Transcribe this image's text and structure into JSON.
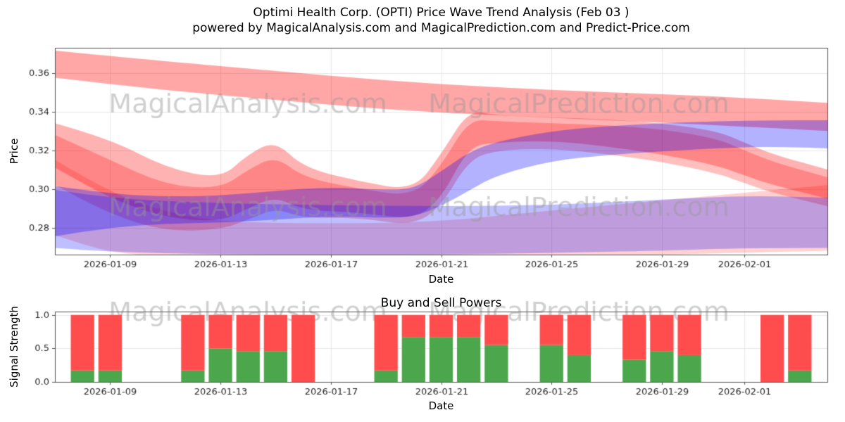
{
  "title": {
    "line1": "Optimi Health Corp. (OPTI) Price Wave Trend Analysis (Feb 03 )",
    "line2": "powered by MagicalAnalysis.com and MagicalPrediction.com and Predict-Price.com"
  },
  "watermarks": {
    "left": "MagicalAnalysis.com",
    "right": "MagicalPrediction.com",
    "color": "rgba(150,150,150,0.45)"
  },
  "chart_data": [
    {
      "type": "area",
      "name": "price-wave-trend",
      "xlabel": "Date",
      "ylabel": "Price",
      "x_domain": [
        0,
        28
      ],
      "x_ticks": [
        {
          "day": 2,
          "label": "2026-01-09"
        },
        {
          "day": 6,
          "label": "2026-01-13"
        },
        {
          "day": 10,
          "label": "2026-01-17"
        },
        {
          "day": 14,
          "label": "2026-01-21"
        },
        {
          "day": 18,
          "label": "2026-01-25"
        },
        {
          "day": 22,
          "label": "2026-01-29"
        },
        {
          "day": 25,
          "label": "2026-02-01"
        }
      ],
      "ylim": [
        0.266,
        0.373
      ],
      "y_ticks": [
        {
          "v": 0.28,
          "label": "0.28"
        },
        {
          "v": 0.3,
          "label": "0.30"
        },
        {
          "v": 0.32,
          "label": "0.32"
        },
        {
          "v": 0.34,
          "label": "0.34"
        },
        {
          "v": 0.36,
          "label": "0.36"
        }
      ],
      "bands": [
        {
          "name": "upper-trend-band",
          "color": "rgba(255,0,0,0.35)",
          "points": [
            [
              0,
              0.3575,
              0.3715
            ],
            [
              4,
              0.351,
              0.366
            ],
            [
              8,
              0.346,
              0.361
            ],
            [
              12,
              0.341,
              0.356
            ],
            [
              16,
              0.338,
              0.3525
            ],
            [
              20,
              0.3355,
              0.35
            ],
            [
              24,
              0.333,
              0.348
            ],
            [
              28,
              0.33,
              0.3445
            ]
          ]
        },
        {
          "name": "mid-trend-band-a",
          "color": "rgba(255,0,0,0.30)",
          "points": [
            [
              0,
              0.311,
              0.334
            ],
            [
              2,
              0.295,
              0.326
            ],
            [
              4,
              0.285,
              0.311
            ],
            [
              6,
              0.283,
              0.305
            ],
            [
              7,
              0.29,
              0.318
            ],
            [
              8,
              0.296,
              0.325
            ],
            [
              9,
              0.289,
              0.311
            ],
            [
              11,
              0.288,
              0.304
            ],
            [
              13,
              0.284,
              0.299
            ],
            [
              14,
              0.295,
              0.318
            ],
            [
              15,
              0.322,
              0.341
            ],
            [
              16,
              0.324,
              0.338
            ],
            [
              18,
              0.325,
              0.337
            ],
            [
              20,
              0.322,
              0.336
            ],
            [
              22,
              0.318,
              0.334
            ],
            [
              24,
              0.312,
              0.33
            ],
            [
              25,
              0.307,
              0.324
            ],
            [
              26,
              0.302,
              0.318
            ],
            [
              28,
              0.295,
              0.31
            ]
          ]
        },
        {
          "name": "mid-trend-band-b",
          "color": "rgba(255,0,0,0.25)",
          "points": [
            [
              0,
              0.302,
              0.328
            ],
            [
              2,
              0.287,
              0.315
            ],
            [
              4,
              0.278,
              0.302
            ],
            [
              6,
              0.279,
              0.3
            ],
            [
              7,
              0.284,
              0.31
            ],
            [
              8,
              0.29,
              0.317
            ],
            [
              9,
              0.285,
              0.306
            ],
            [
              11,
              0.285,
              0.3
            ],
            [
              13,
              0.281,
              0.296
            ],
            [
              14,
              0.291,
              0.312
            ],
            [
              15,
              0.315,
              0.336
            ],
            [
              16,
              0.32,
              0.335
            ],
            [
              18,
              0.321,
              0.334
            ],
            [
              20,
              0.318,
              0.333
            ],
            [
              22,
              0.314,
              0.331
            ],
            [
              24,
              0.308,
              0.326
            ],
            [
              25,
              0.303,
              0.32
            ],
            [
              26,
              0.298,
              0.314
            ],
            [
              28,
              0.291,
              0.306
            ]
          ]
        },
        {
          "name": "lower-red-band",
          "color": "rgba(255,0,0,0.18)",
          "points": [
            [
              0,
              0.276,
              0.315
            ],
            [
              2,
              0.267,
              0.298
            ],
            [
              4,
              0.265,
              0.288
            ],
            [
              6,
              0.264,
              0.283
            ],
            [
              10,
              0.264,
              0.282
            ],
            [
              14,
              0.264,
              0.283
            ],
            [
              18,
              0.265,
              0.289
            ],
            [
              22,
              0.266,
              0.294
            ],
            [
              25,
              0.267,
              0.298
            ],
            [
              28,
              0.268,
              0.302
            ]
          ]
        },
        {
          "name": "blue-trend-band",
          "color": "rgba(0,0,255,0.30)",
          "points": [
            [
              0,
              0.2755,
              0.3015
            ],
            [
              2,
              0.28,
              0.2975
            ],
            [
              4,
              0.282,
              0.296
            ],
            [
              6,
              0.2825,
              0.2965
            ],
            [
              8,
              0.284,
              0.299
            ],
            [
              10,
              0.286,
              0.301
            ],
            [
              12,
              0.285,
              0.2995
            ],
            [
              13,
              0.2855,
              0.3
            ],
            [
              14,
              0.291,
              0.309
            ],
            [
              15,
              0.299,
              0.319
            ],
            [
              16,
              0.307,
              0.3245
            ],
            [
              18,
              0.3145,
              0.33
            ],
            [
              20,
              0.3175,
              0.3325
            ],
            [
              22,
              0.3195,
              0.334
            ],
            [
              24,
              0.321,
              0.335
            ],
            [
              26,
              0.322,
              0.3355
            ],
            [
              28,
              0.321,
              0.3355
            ]
          ]
        },
        {
          "name": "blue-base-band",
          "color": "rgba(0,0,255,0.25)",
          "points": [
            [
              0,
              0.2695,
              0.2995
            ],
            [
              2,
              0.2675,
              0.295
            ],
            [
              6,
              0.266,
              0.2925
            ],
            [
              10,
              0.266,
              0.2915
            ],
            [
              14,
              0.266,
              0.291
            ],
            [
              18,
              0.267,
              0.2915
            ],
            [
              22,
              0.268,
              0.2945
            ],
            [
              25,
              0.2695,
              0.2965
            ],
            [
              28,
              0.2695,
              0.2955
            ]
          ]
        }
      ]
    },
    {
      "type": "bar",
      "name": "buy-sell-powers",
      "title": "Buy and Sell Powers",
      "xlabel": "Date",
      "ylabel": "Signal Strength",
      "x_domain": [
        0,
        28
      ],
      "x_ticks": [
        {
          "day": 2,
          "label": "2026-01-09"
        },
        {
          "day": 6,
          "label": "2026-01-13"
        },
        {
          "day": 10,
          "label": "2026-01-17"
        },
        {
          "day": 14,
          "label": "2026-01-21"
        },
        {
          "day": 18,
          "label": "2026-01-25"
        },
        {
          "day": 22,
          "label": "2026-01-29"
        },
        {
          "day": 25,
          "label": "2026-02-01"
        }
      ],
      "ylim": [
        0,
        1.05
      ],
      "y_ticks": [
        {
          "v": 0.0,
          "label": "0.0"
        },
        {
          "v": 0.5,
          "label": "0.5"
        },
        {
          "v": 1.0,
          "label": "1.0"
        }
      ],
      "bar_width_days": 0.85,
      "colors": {
        "buy": "#4ca64c",
        "sell": "#ff4c4c"
      },
      "bars": [
        {
          "date": "2026-01-08",
          "day": 1,
          "buy": 0.17,
          "sell": 0.83
        },
        {
          "date": "2026-01-09",
          "day": 2,
          "buy": 0.17,
          "sell": 0.83
        },
        {
          "date": "2026-01-12",
          "day": 5,
          "buy": 0.17,
          "sell": 0.83
        },
        {
          "date": "2026-01-13",
          "day": 6,
          "buy": 0.5,
          "sell": 0.5
        },
        {
          "date": "2026-01-14",
          "day": 7,
          "buy": 0.46,
          "sell": 0.54
        },
        {
          "date": "2026-01-15",
          "day": 8,
          "buy": 0.46,
          "sell": 0.54
        },
        {
          "date": "2026-01-16",
          "day": 9,
          "buy": 0.0,
          "sell": 1.0
        },
        {
          "date": "2026-01-19",
          "day": 12,
          "buy": 0.17,
          "sell": 0.83
        },
        {
          "date": "2026-01-20",
          "day": 13,
          "buy": 0.67,
          "sell": 0.33
        },
        {
          "date": "2026-01-21",
          "day": 14,
          "buy": 0.67,
          "sell": 0.33
        },
        {
          "date": "2026-01-22",
          "day": 15,
          "buy": 0.67,
          "sell": 0.33
        },
        {
          "date": "2026-01-23",
          "day": 16,
          "buy": 0.55,
          "sell": 0.45
        },
        {
          "date": "2026-01-25",
          "day": 18,
          "buy": 0.55,
          "sell": 0.45
        },
        {
          "date": "2026-01-26",
          "day": 19,
          "buy": 0.4,
          "sell": 0.6
        },
        {
          "date": "2026-01-28",
          "day": 21,
          "buy": 0.33,
          "sell": 0.67
        },
        {
          "date": "2026-01-29",
          "day": 22,
          "buy": 0.46,
          "sell": 0.54
        },
        {
          "date": "2026-01-30",
          "day": 23,
          "buy": 0.4,
          "sell": 0.6
        },
        {
          "date": "2026-02-02",
          "day": 26,
          "buy": 0.0,
          "sell": 1.0
        },
        {
          "date": "2026-02-03",
          "day": 27,
          "buy": 0.17,
          "sell": 0.83
        }
      ]
    }
  ]
}
